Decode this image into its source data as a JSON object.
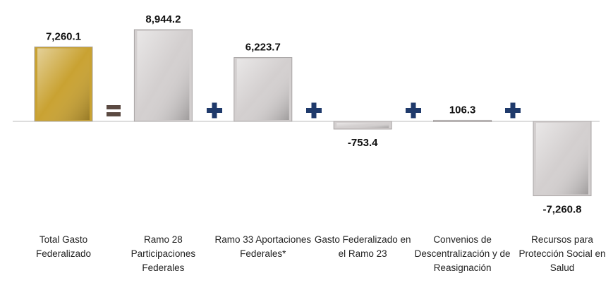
{
  "chart_data": {
    "type": "bar",
    "categories": [
      "Total Gasto Federalizado",
      "Ramo 28 Participaciones Federales",
      "Ramo 33 Aportaciones Federales*",
      "Gasto Federalizado en el Ramo 23",
      "Convenios de Descentralización y de Reasignación",
      "Recursos para Protección Social en Salud"
    ],
    "values": [
      7260.1,
      8944.2,
      6223.7,
      -753.4,
      106.3,
      -7260.8
    ],
    "value_labels": [
      "7,260.1",
      "8,944.2",
      "6,223.7",
      "-753.4",
      "106.3",
      "-7,260.8"
    ],
    "colors": [
      "#c9a232",
      "#d3cfcf",
      "#d3cfcf",
      "#d3cfcf",
      "#d3cfcf",
      "#d3cfcf"
    ]
  }
}
